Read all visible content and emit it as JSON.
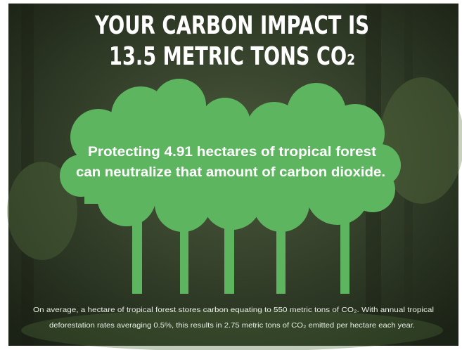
{
  "headline": {
    "line1": "YOUR CARBON IMPACT IS",
    "line2": "13.5 METRIC TONS CO₂"
  },
  "message": {
    "line1": "Protecting 4.91 hectares of tropical forest",
    "line2": "can neutralize that amount of carbon dioxide."
  },
  "footnote": {
    "line1": "On average, a hectare of tropical forest stores carbon equating to 550 metric tons of CO₂. With annual tropical",
    "line2": "deforestation rates averaging 0.5%, this results in 2.75 metric tons of CO₂ emitted per hectare each year."
  }
}
